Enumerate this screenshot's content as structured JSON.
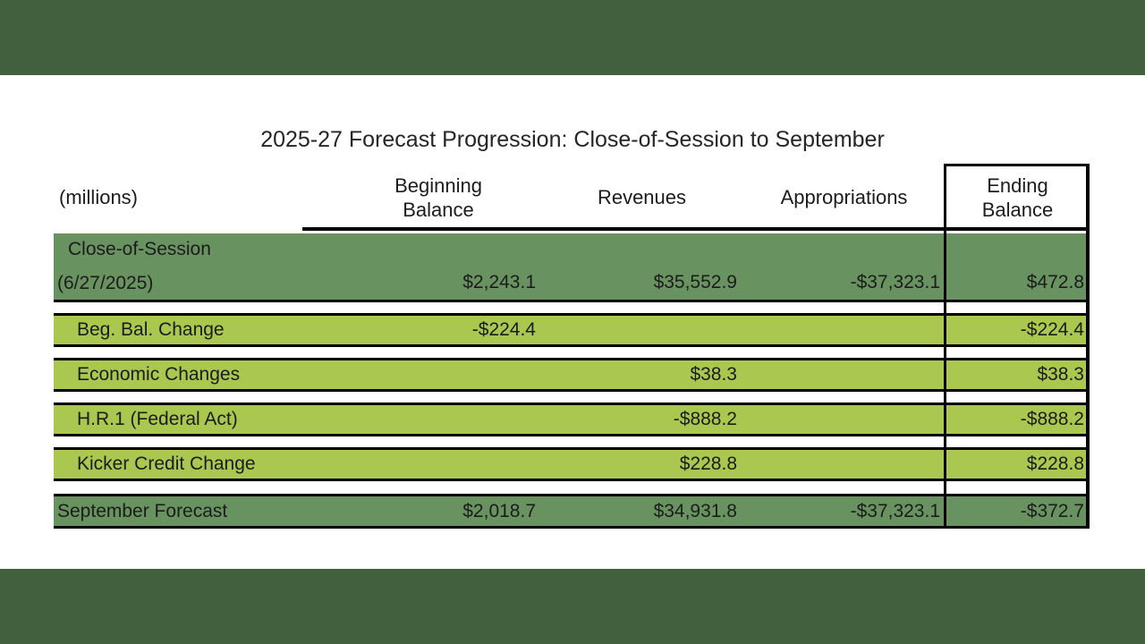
{
  "slide": {
    "title": "2025-27 Forecast Progression: Close-of-Session to September"
  },
  "table": {
    "unit_label": "(millions)",
    "headers": {
      "beginning_balance": "Beginning\nBalance",
      "revenues": "Revenues",
      "appropriations": "Appropriations",
      "ending_balance": "Ending\nBalance"
    },
    "rows": [
      {
        "label_line1": "Close-of-Session",
        "label_line2": "(6/27/2025)",
        "cells": [
          "$2,243.1",
          "$35,552.9",
          "-$37,323.1",
          "$472.8"
        ]
      },
      {
        "label": "Beg. Bal. Change",
        "cells": [
          "-$224.4",
          "",
          "",
          "-$224.4"
        ]
      },
      {
        "label": "Economic Changes",
        "cells": [
          "",
          "$38.3",
          "",
          "$38.3"
        ]
      },
      {
        "label": "H.R.1 (Federal Act)",
        "cells": [
          "",
          "-$888.2",
          "",
          "-$888.2"
        ]
      },
      {
        "label": "Kicker Credit Change",
        "cells": [
          "",
          "$228.8",
          "",
          "$228.8"
        ]
      },
      {
        "label": "September Forecast",
        "cells": [
          "$2,018.7",
          "$34,931.8",
          "-$37,323.1",
          "-$372.7"
        ]
      }
    ]
  },
  "colors": {
    "band_green": "#42603E",
    "dark_row_green": "#68925F",
    "light_row_green": "#AAC750",
    "border_black": "#000000",
    "text": "#1C1C1C"
  },
  "chart_data": {
    "type": "table",
    "title": "2025-27 Forecast Progression: Close-of-Session to September",
    "unit": "millions of dollars",
    "columns": [
      "(millions)",
      "Beginning Balance",
      "Revenues",
      "Appropriations",
      "Ending Balance"
    ],
    "rows": [
      {
        "label": "Close-of-Session (6/27/2025)",
        "beginning_balance": 2243.1,
        "revenues": 35552.9,
        "appropriations": -37323.1,
        "ending_balance": 472.8
      },
      {
        "label": "Beg. Bal. Change",
        "beginning_balance": -224.4,
        "revenues": null,
        "appropriations": null,
        "ending_balance": -224.4
      },
      {
        "label": "Economic Changes",
        "beginning_balance": null,
        "revenues": 38.3,
        "appropriations": null,
        "ending_balance": 38.3
      },
      {
        "label": "H.R.1 (Federal Act)",
        "beginning_balance": null,
        "revenues": -888.2,
        "appropriations": null,
        "ending_balance": -888.2
      },
      {
        "label": "Kicker Credit Change",
        "beginning_balance": null,
        "revenues": 228.8,
        "appropriations": null,
        "ending_balance": 228.8
      },
      {
        "label": "September Forecast",
        "beginning_balance": 2018.7,
        "revenues": 34931.8,
        "appropriations": -37323.1,
        "ending_balance": -372.7
      }
    ]
  }
}
